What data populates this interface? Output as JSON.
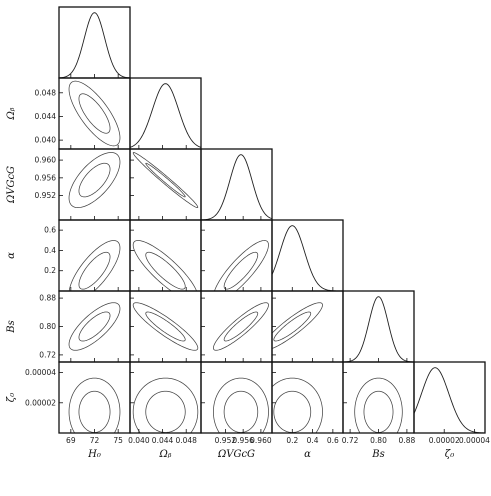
{
  "chart_data": {
    "type": "corner-plot",
    "title": "",
    "parameters": [
      {
        "key": "H0",
        "label": "H₀",
        "range": [
          67.5,
          76.5
        ],
        "ticks": [
          69,
          72,
          75
        ],
        "tick_labels": [
          "69",
          "72",
          "75"
        ],
        "mean": 72.0,
        "sd": 1.3
      },
      {
        "key": "Ob",
        "label": "Ωᵦ",
        "range": [
          0.0385,
          0.0505
        ],
        "ticks": [
          0.04,
          0.044,
          0.048
        ],
        "tick_labels": [
          "0.040",
          "0.044",
          "0.048"
        ],
        "mean": 0.0445,
        "sd": 0.0022
      },
      {
        "key": "Ovgcg",
        "label": "ΩVGcG",
        "range": [
          0.9465,
          0.9625
        ],
        "ticks": [
          0.952,
          0.956,
          0.96
        ],
        "tick_labels": [
          "0.952",
          "0.956",
          "0.960"
        ],
        "mean": 0.9555,
        "sd": 0.0025
      },
      {
        "key": "alpha",
        "label": "α",
        "range": [
          0.0,
          0.7
        ],
        "ticks": [
          0.2,
          0.4,
          0.6
        ],
        "tick_labels": [
          "0.2",
          "0.4",
          "0.6"
        ],
        "mean": 0.2,
        "sd": 0.12
      },
      {
        "key": "Bs",
        "label": "Bs",
        "range": [
          0.7,
          0.9
        ],
        "ticks": [
          0.72,
          0.8,
          0.88
        ],
        "tick_labels": [
          "0.72",
          "0.80",
          "0.88"
        ],
        "mean": 0.8,
        "sd": 0.027
      },
      {
        "key": "zeta0",
        "label": "ζ₀",
        "range": [
          0.0,
          4.7e-05
        ],
        "ticks": [
          2e-05,
          4e-05
        ],
        "tick_labels": [
          "0.00002",
          "0.00004"
        ],
        "mean": 1.4e-05,
        "sd": 9e-06
      }
    ],
    "correlations": [
      [
        1,
        -0.75,
        0.65,
        0.75,
        0.75,
        0.0
      ],
      [
        -0.75,
        1,
        -0.985,
        -0.85,
        -0.9,
        0.0
      ],
      [
        0.65,
        -0.985,
        1,
        0.85,
        0.9,
        0.0
      ],
      [
        0.75,
        -0.85,
        0.85,
        1,
        0.9,
        0.0
      ],
      [
        0.75,
        -0.9,
        0.9,
        0.9,
        1,
        0.0
      ],
      [
        0.0,
        0.0,
        0.0,
        0.0,
        0.0,
        1
      ]
    ],
    "contour_levels": [
      "1-sigma",
      "2-sigma"
    ],
    "grid": false,
    "legend": "none"
  }
}
